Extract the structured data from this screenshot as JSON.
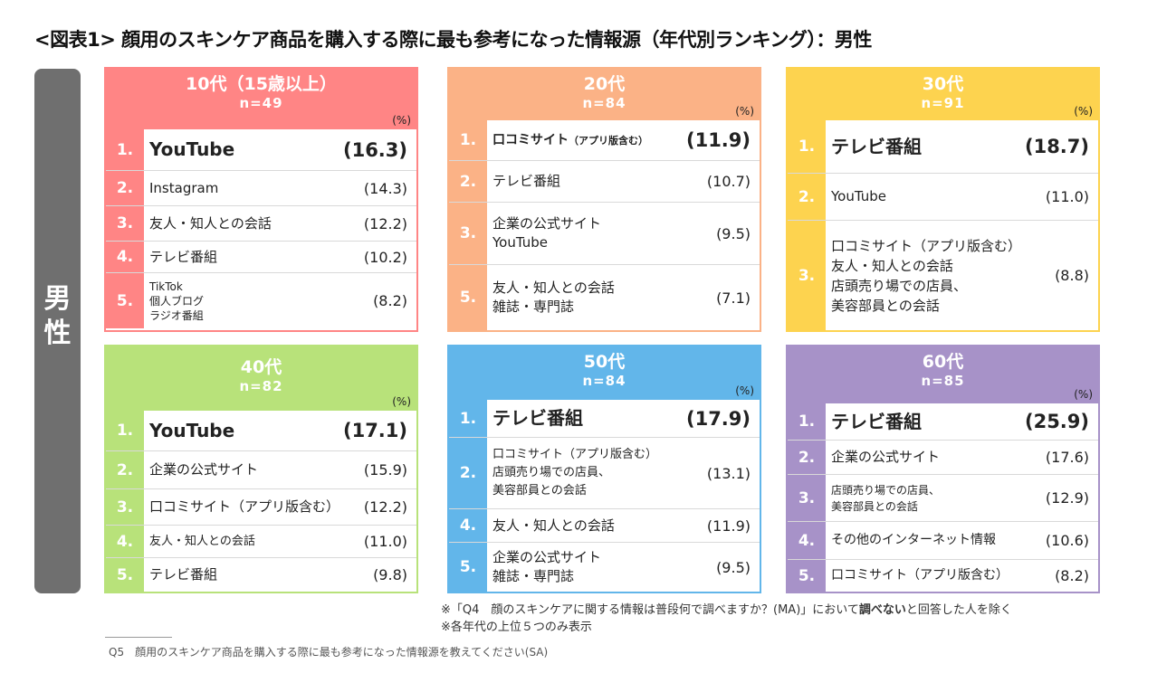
{
  "title": "<図表1> 顔用のスキンケア商品を購入する際に最も参考になった情報源（年代別ランキング）：男性",
  "gender_label": "男\n性",
  "panels": [
    {
      "age": "10代（15歳以上）",
      "n": "n=49",
      "pct": "(%)",
      "rows": [
        {
          "rank": "1.",
          "label": "YouTube",
          "value": "(16.3)"
        },
        {
          "rank": "2.",
          "label": "Instagram",
          "value": "(14.3)"
        },
        {
          "rank": "3.",
          "label": "友人・知人との会話",
          "value": "(12.2)"
        },
        {
          "rank": "4.",
          "label": "テレビ番組",
          "value": "(10.2)"
        },
        {
          "rank": "5.",
          "label": "TikTok\n個人ブログ\nラジオ番組",
          "value": "(8.2)"
        }
      ]
    },
    {
      "age": "20代",
      "n": "n=84",
      "pct": "(%)",
      "rows": [
        {
          "rank": "1.",
          "label": "口コミサイト",
          "label_small": "（アプリ版含む）",
          "value": "(11.9)"
        },
        {
          "rank": "2.",
          "label": "テレビ番組",
          "value": "(10.7)"
        },
        {
          "rank": "3.",
          "label": "企業の公式サイト\nYouTube",
          "value": "(9.5)"
        },
        {
          "rank": "5.",
          "label": "友人・知人との会話\n雑誌・専門誌",
          "value": "(7.1)"
        }
      ]
    },
    {
      "age": "30代",
      "n": "n=91",
      "pct": "(%)",
      "rows": [
        {
          "rank": "1.",
          "label": "テレビ番組",
          "value": "(18.7)"
        },
        {
          "rank": "2.",
          "label": "YouTube",
          "value": "(11.0)"
        },
        {
          "rank": "3.",
          "label": "口コミサイト（アプリ版含む）\n友人・知人との会話\n店頭売り場での店員、\n美容部員との会話",
          "value": "(8.8)"
        }
      ]
    },
    {
      "age": "40代",
      "n": "n=82",
      "pct": "(%)",
      "rows": [
        {
          "rank": "1.",
          "label": "YouTube",
          "value": "(17.1)"
        },
        {
          "rank": "2.",
          "label": "企業の公式サイト",
          "value": "(15.9)"
        },
        {
          "rank": "3.",
          "label": "口コミサイト（アプリ版含む）",
          "value": "(12.2)"
        },
        {
          "rank": "4.",
          "label": "友人・知人との会話",
          "value": "(11.0)"
        },
        {
          "rank": "5.",
          "label": "テレビ番組",
          "value": "(9.8)"
        }
      ]
    },
    {
      "age": "50代",
      "n": "n=84",
      "pct": "(%)",
      "rows": [
        {
          "rank": "1.",
          "label": "テレビ番組",
          "value": "(17.9)"
        },
        {
          "rank": "2.",
          "label": "口コミサイト（アプリ版含む）\n店頭売り場での店員、\n美容部員との会話",
          "value": "(13.1)"
        },
        {
          "rank": "4.",
          "label": "友人・知人との会話",
          "value": "(11.9)"
        },
        {
          "rank": "5.",
          "label": "企業の公式サイト\n雑誌・専門誌",
          "value": "(9.5)"
        }
      ]
    },
    {
      "age": "60代",
      "n": "n=85",
      "pct": "(%)",
      "rows": [
        {
          "rank": "1.",
          "label": "テレビ番組",
          "value": "(25.9)"
        },
        {
          "rank": "2.",
          "label": "企業の公式サイト",
          "value": "(17.6)"
        },
        {
          "rank": "3.",
          "label": "店頭売り場での店員、\n美容部員との会話",
          "value": "(12.9)"
        },
        {
          "rank": "4.",
          "label": "その他のインターネット情報",
          "value": "(10.6)"
        },
        {
          "rank": "5.",
          "label": "口コミサイト（アプリ版含む）",
          "value": "(8.2)"
        }
      ]
    }
  ],
  "notes": {
    "line1_pre": "※「Q4　顔のスキンケアに関する情報は普段何で調べますか？(MA)」において",
    "line1_bold": "調べない",
    "line1_post": "と回答した人を除く",
    "line2": "※各年代の上位５つのみ表示"
  },
  "question": "Q5　顔用のスキンケア商品を購入する際に最も参考になった情報源を教えてください(SA)"
}
